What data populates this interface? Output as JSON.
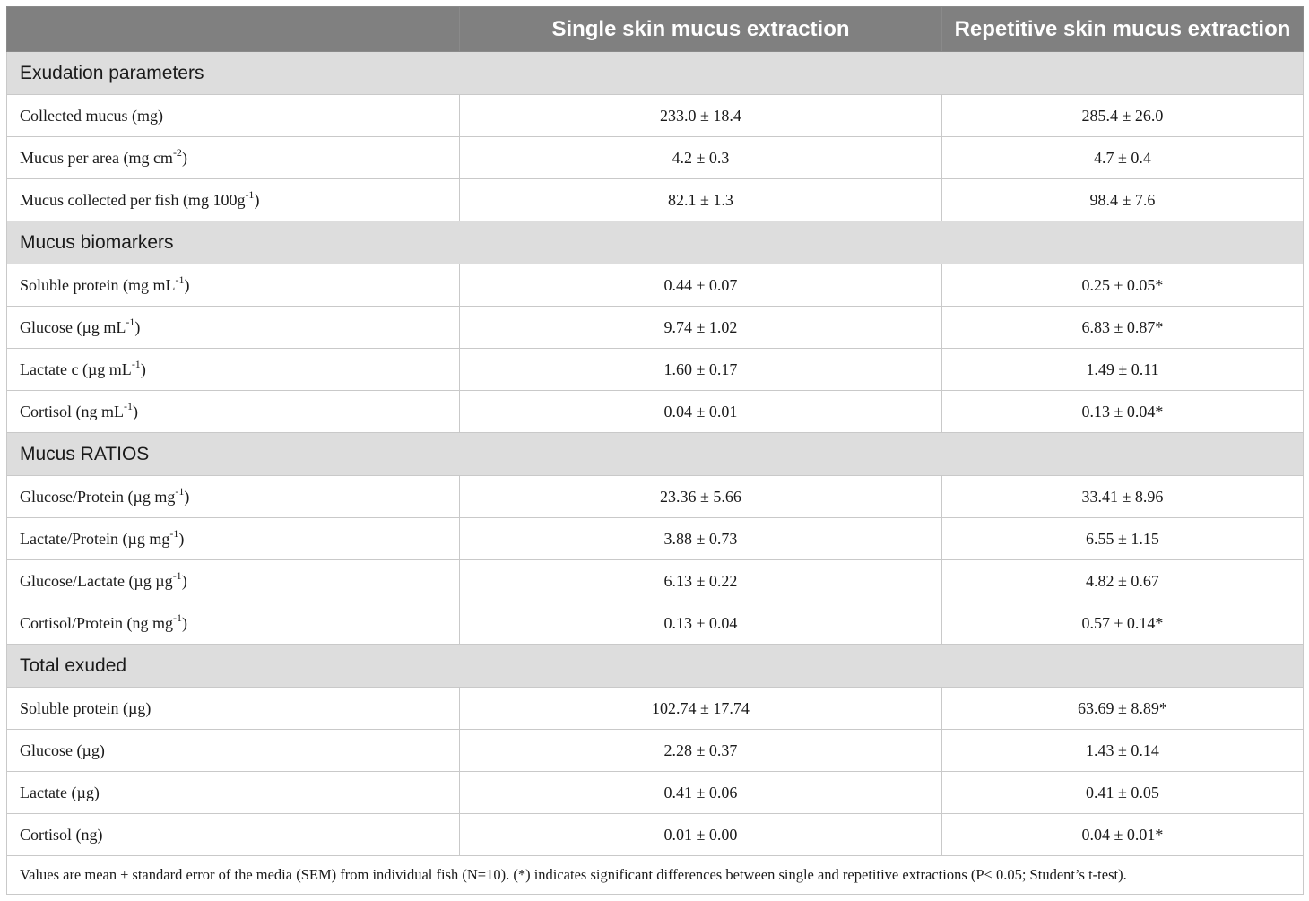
{
  "header": {
    "col1": "",
    "col2": "Single skin mucus extraction",
    "col3": "Repetitive skin mucus extraction"
  },
  "sections": [
    {
      "title": "Exudation parameters",
      "rows": [
        {
          "label": "Collected mucus (mg)",
          "unit_sup": "",
          "label_tail": "",
          "single": "233.0 ± 18.4",
          "repetitive": "285.4 ± 26.0"
        },
        {
          "label": "Mucus per area (mg cm",
          "unit_sup": "-2",
          "label_tail": ")",
          "single": "4.2 ± 0.3",
          "repetitive": "4.7 ± 0.4"
        },
        {
          "label": "Mucus collected per fish (mg 100g",
          "unit_sup": "-1",
          "label_tail": ")",
          "single": "82.1 ± 1.3",
          "repetitive": "98.4 ± 7.6"
        }
      ]
    },
    {
      "title": "Mucus biomarkers",
      "rows": [
        {
          "label": "Soluble protein (mg mL",
          "unit_sup": "-1",
          "label_tail": ")",
          "single": "0.44 ± 0.07",
          "repetitive": "0.25 ± 0.05*"
        },
        {
          "label": "Glucose (µg mL",
          "unit_sup": "-1",
          "label_tail": ")",
          "single": "9.74 ± 1.02",
          "repetitive": "6.83 ± 0.87*"
        },
        {
          "label": "Lactate c (µg mL",
          "unit_sup": "-1",
          "label_tail": ")",
          "single": "1.60 ± 0.17",
          "repetitive": "1.49 ± 0.11"
        },
        {
          "label": "Cortisol (ng mL",
          "unit_sup": "-1",
          "label_tail": ")",
          "single": "0.04 ± 0.01",
          "repetitive": "0.13 ± 0.04*"
        }
      ]
    },
    {
      "title": "Mucus RATIOS",
      "rows": [
        {
          "label": "Glucose/Protein (µg mg",
          "unit_sup": "-1",
          "label_tail": ")",
          "single": "23.36 ± 5.66",
          "repetitive": "33.41 ± 8.96"
        },
        {
          "label": "Lactate/Protein (µg mg",
          "unit_sup": "-1",
          "label_tail": ")",
          "single": "3.88 ± 0.73",
          "repetitive": "6.55 ± 1.15"
        },
        {
          "label": "Glucose/Lactate (µg µg",
          "unit_sup": "-1",
          "label_tail": ")",
          "single": "6.13 ± 0.22",
          "repetitive": "4.82 ± 0.67"
        },
        {
          "label": "Cortisol/Protein (ng mg",
          "unit_sup": "-1",
          "label_tail": ")",
          "single": "0.13 ± 0.04",
          "repetitive": "0.57 ± 0.14*"
        }
      ]
    },
    {
      "title": "Total exuded",
      "rows": [
        {
          "label": "Soluble protein (µg)",
          "unit_sup": "",
          "label_tail": "",
          "single": "102.74 ± 17.74",
          "repetitive": "63.69 ± 8.89*"
        },
        {
          "label": "Glucose (µg)",
          "unit_sup": "",
          "label_tail": "",
          "single": "2.28 ± 0.37",
          "repetitive": "1.43 ± 0.14"
        },
        {
          "label": "Lactate (µg)",
          "unit_sup": "",
          "label_tail": "",
          "single": "0.41 ± 0.06",
          "repetitive": "0.41 ± 0.05"
        },
        {
          "label": "Cortisol (ng)",
          "unit_sup": "",
          "label_tail": "",
          "single": "0.01 ± 0.00",
          "repetitive": "0.04 ± 0.01*"
        }
      ]
    }
  ],
  "footnote": "Values are mean ± standard error of the media (SEM) from individual fish (N=10). (*) indicates significant differences between single and repetitive extractions (P< 0.05; Student’s t-test)."
}
